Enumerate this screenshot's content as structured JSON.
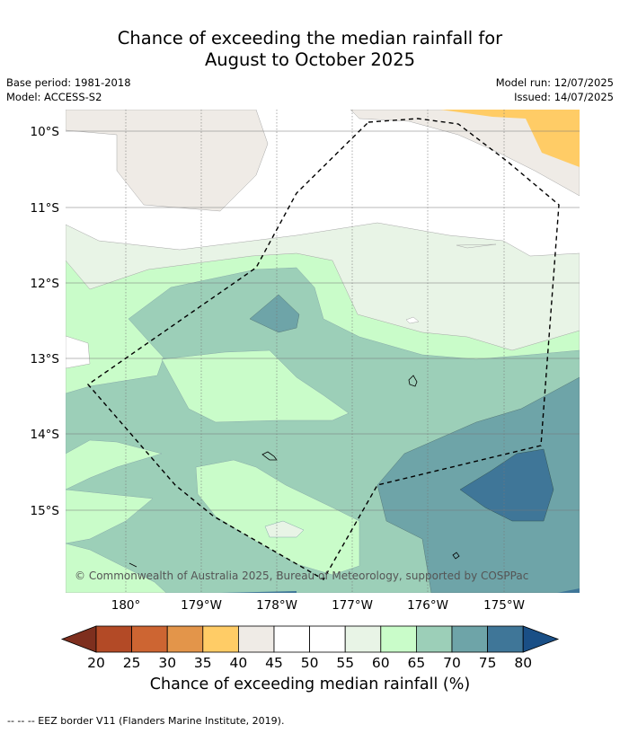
{
  "header": {
    "title_line1": "Chance of exceeding the median rainfall for",
    "title_line2": "August to October 2025",
    "base_period": "Base period: 1981-2018",
    "model": "Model: ACCESS-S2",
    "model_run": "Model run: 12/07/2025",
    "issued": "Issued: 14/07/2025"
  },
  "map": {
    "lon_labels": [
      "180°",
      "179°W",
      "178°W",
      "177°W",
      "176°W",
      "175°W"
    ],
    "lat_labels": [
      "10°S",
      "11°S",
      "12°S",
      "13°S",
      "14°S",
      "15°S"
    ],
    "copyright": "© Commonwealth of Australia 2025, Bureau of Meteorology, supported by COSPPac",
    "eez_line_style": "dashed"
  },
  "colorbar": {
    "ticks": [
      "20",
      "25",
      "30",
      "35",
      "40",
      "45",
      "50",
      "55",
      "60",
      "65",
      "70",
      "75",
      "80"
    ],
    "colors": [
      "#7e2f1e",
      "#b34a26",
      "#cd6532",
      "#e3954a",
      "#ffcc66",
      "#efebe6",
      "#ffffff",
      "#ffffff",
      "#e8f4e6",
      "#c9fcc9",
      "#9ccfb8",
      "#6ea4a8",
      "#3f7698",
      "#1a4f86"
    ],
    "label": "Chance of exceeding median rainfall (%)"
  },
  "footnote": "--  --  -- EEZ border V11 (Flanders Marine Institute, 2019)."
}
